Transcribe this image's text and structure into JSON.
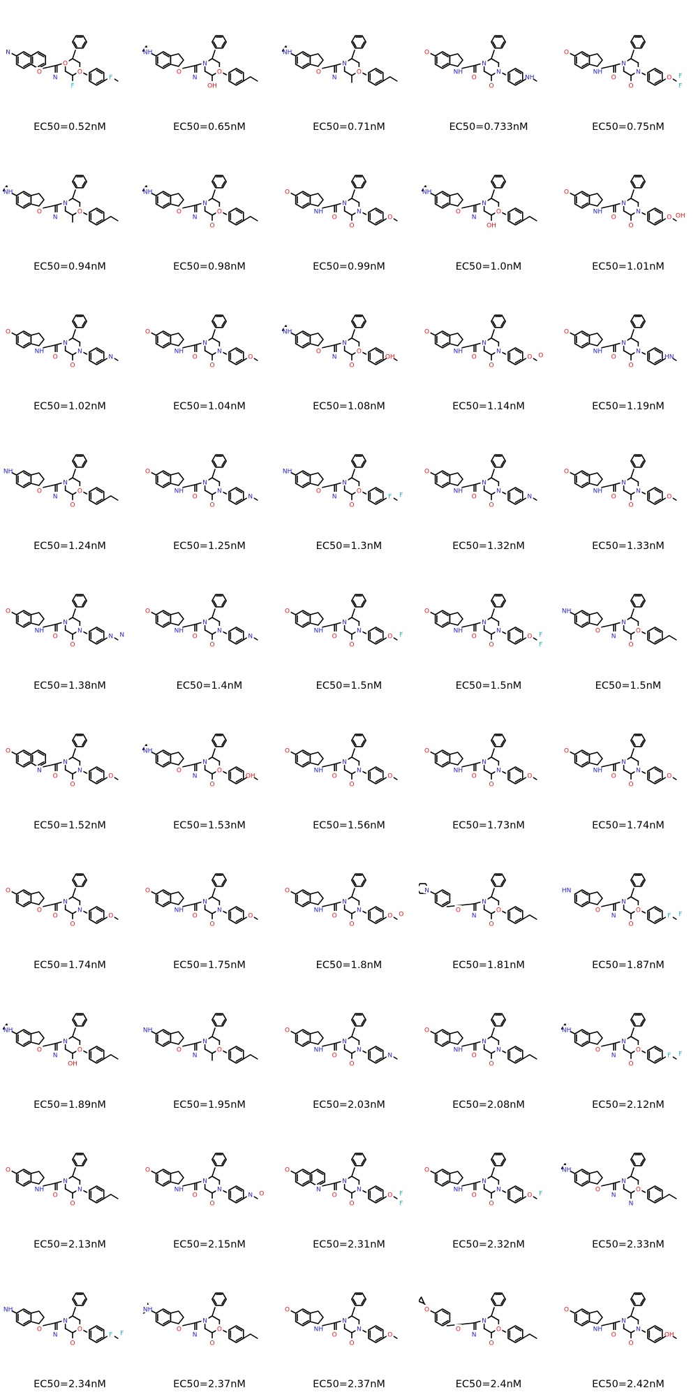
{
  "compounds": [
    {
      "label": "EC50=0.52nM",
      "core": "quinoline",
      "sub": "methyl",
      "r": "OCHF2",
      "atoms": [
        "N",
        "O",
        "N",
        "O",
        "O",
        "F",
        "F"
      ]
    },
    {
      "label": "EC50=0.65nM",
      "core": "indole",
      "sub": "cyclopropyl",
      "r": "CH(CH3)OH",
      "atoms": [
        "NH",
        "O",
        "N",
        "N",
        "O",
        "OH"
      ]
    },
    {
      "label": "EC50=0.71nM",
      "core": "indole",
      "sub": "cyclopropyl",
      "r": "cyclopropyl",
      "atoms": [
        "NH",
        "O",
        "N",
        "N",
        "O"
      ]
    },
    {
      "label": "EC50=0.733nM",
      "core": "indole",
      "sub": "methoxy",
      "r": "indolyl",
      "atoms": [
        "O",
        "NH",
        "O",
        "N",
        "N",
        "O",
        "NH"
      ]
    },
    {
      "label": "EC50=0.75nM",
      "core": "indole",
      "sub": "methoxy",
      "r": "OCHF2",
      "atoms": [
        "O",
        "NH",
        "O",
        "N",
        "N",
        "O",
        "O",
        "F",
        "F"
      ]
    },
    {
      "label": "EC50=0.94nM",
      "core": "indole",
      "sub": "cyclopropyl",
      "r": "methyl",
      "atoms": [
        "NH",
        "O",
        "N",
        "N",
        "O"
      ]
    },
    {
      "label": "EC50=0.98nM",
      "core": "indole",
      "sub": "cyclopropyl",
      "r": "ortho-methoxy",
      "atoms": [
        "NH",
        "O",
        "N",
        "N",
        "O",
        "O"
      ]
    },
    {
      "label": "EC50=0.99nM",
      "core": "indole",
      "sub": "methoxy",
      "r": "dihydrobenzofuran",
      "atoms": [
        "O",
        "NH",
        "O",
        "N",
        "N",
        "O",
        "O"
      ]
    },
    {
      "label": "EC50=1.0nM",
      "core": "indole",
      "sub": "cyclopropyl",
      "r": "CH2OH",
      "atoms": [
        "NH",
        "O",
        "N",
        "N",
        "O",
        "OH"
      ]
    },
    {
      "label": "EC50=1.01nM",
      "core": "indole",
      "sub": "methoxy",
      "r": "OCH2CH2OH",
      "atoms": [
        "O",
        "NH",
        "O",
        "N",
        "N",
        "O",
        "O",
        "OH"
      ]
    },
    {
      "label": "EC50=1.02nM",
      "core": "indole",
      "sub": "methoxy",
      "r": "benzyl",
      "atoms": [
        "O",
        "NH",
        "O",
        "N",
        "N",
        "O",
        "N"
      ]
    },
    {
      "label": "EC50=1.04nM",
      "core": "indole",
      "sub": "methoxy",
      "r": "methoxy",
      "atoms": [
        "O",
        "NH",
        "O",
        "N",
        "N",
        "O",
        "O"
      ]
    },
    {
      "label": "EC50=1.08nM",
      "core": "indole",
      "sub": "cyclopropyl",
      "r": "OCH2CH2OH",
      "atoms": [
        "NH",
        "O",
        "N",
        "N",
        "O",
        "O",
        "OH"
      ]
    },
    {
      "label": "EC50=1.14nM",
      "core": "indole",
      "sub": "methoxy",
      "r": "methoxy",
      "atoms": [
        "O",
        "NH",
        "O",
        "N",
        "N",
        "O",
        "O",
        "O"
      ]
    },
    {
      "label": "EC50=1.19nM",
      "core": "indole",
      "sub": "methoxy",
      "r": "pyrrolyl",
      "atoms": [
        "O",
        "NH",
        "O",
        "N",
        "N",
        "O",
        "HN"
      ]
    },
    {
      "label": "EC50=1.24nM",
      "core": "indole",
      "sub": "methyl",
      "r": "methoxy",
      "atoms": [
        "NH",
        "O",
        "N",
        "N",
        "O",
        "O"
      ]
    },
    {
      "label": "EC50=1.25nM",
      "core": "indole",
      "sub": "methoxy",
      "r": "phenyl",
      "atoms": [
        "O",
        "NH",
        "O",
        "N",
        "N",
        "O",
        "N"
      ]
    },
    {
      "label": "EC50=1.3nM",
      "core": "indole",
      "sub": "methyl",
      "r": "OCHF2",
      "atoms": [
        "NH",
        "O",
        "N",
        "N",
        "O",
        "O",
        "F",
        "F"
      ]
    },
    {
      "label": "EC50=1.32nM",
      "core": "indole",
      "sub": "methoxy",
      "r": "N-methylindolyl",
      "atoms": [
        "O",
        "NH",
        "O",
        "N",
        "N",
        "O",
        "N"
      ]
    },
    {
      "label": "EC50=1.33nM",
      "core": "indole",
      "sub": "methoxy",
      "r": "ethoxy",
      "atoms": [
        "O",
        "NH",
        "O",
        "N",
        "N",
        "O",
        "O"
      ]
    },
    {
      "label": "EC50=1.38nM",
      "core": "indole",
      "sub": "methoxy",
      "r": "pyrazolyl",
      "atoms": [
        "O",
        "NH",
        "O",
        "N",
        "N",
        "O",
        "N",
        "N"
      ]
    },
    {
      "label": "EC50=1.4nM",
      "core": "indole",
      "sub": "methoxy",
      "r": "phenyl",
      "atoms": [
        "O",
        "NH",
        "O",
        "N",
        "N",
        "O",
        "N"
      ]
    },
    {
      "label": "EC50=1.5nM",
      "core": "indole",
      "sub": "methoxy",
      "r": "phenyl",
      "atoms": [
        "O",
        "NH",
        "O",
        "N",
        "N",
        "O",
        "O",
        "F"
      ]
    },
    {
      "label": "EC50=1.5nM",
      "core": "indole",
      "sub": "methoxy",
      "r": "ortho-OCHF2",
      "atoms": [
        "O",
        "NH",
        "O",
        "N",
        "N",
        "O",
        "O",
        "F",
        "F"
      ]
    },
    {
      "label": "EC50=1.5nM",
      "core": "indole",
      "sub": "methyl",
      "r": "methoxy",
      "atoms": [
        "NH",
        "O",
        "N",
        "N",
        "O",
        "O"
      ]
    },
    {
      "label": "EC50=1.52nM",
      "core": "quinoline",
      "sub": "methoxy",
      "r": "methoxy",
      "atoms": [
        "O",
        "N",
        "O",
        "N",
        "N",
        "O",
        "O"
      ]
    },
    {
      "label": "EC50=1.53nM",
      "core": "indole",
      "sub": "cyclopropyl",
      "r": "hydroxyoxetanyl",
      "atoms": [
        "NH",
        "O",
        "N",
        "N",
        "O",
        "O",
        "OH"
      ]
    },
    {
      "label": "EC50=1.56nM",
      "core": "indole",
      "sub": "methoxy",
      "r": "ortho-methoxy",
      "atoms": [
        "O",
        "NH",
        "O",
        "N",
        "N",
        "O",
        "O"
      ]
    },
    {
      "label": "EC50=1.73nM",
      "core": "indole",
      "sub": "methoxy",
      "r": "cyclopropylmethoxy",
      "atoms": [
        "O",
        "NH",
        "O",
        "N",
        "N",
        "O",
        "O"
      ]
    },
    {
      "label": "EC50=1.74nM",
      "core": "indole",
      "sub": "methoxy",
      "r": "methoxy",
      "atoms": [
        "O",
        "NH",
        "O",
        "N",
        "N",
        "O",
        "O"
      ]
    },
    {
      "label": "EC50=1.74nM",
      "core": "benzofuran",
      "sub": "methoxy",
      "r": "methoxy",
      "atoms": [
        "O",
        "O",
        "O",
        "N",
        "N",
        "O",
        "O"
      ]
    },
    {
      "label": "EC50=1.75nM",
      "core": "indole",
      "sub": "methoxy",
      "r": "acetyl",
      "atoms": [
        "O",
        "NH",
        "O",
        "N",
        "N",
        "O",
        "O"
      ]
    },
    {
      "label": "EC50=1.8nM",
      "core": "indole",
      "sub": "methoxy",
      "r": "methyl-ester",
      "atoms": [
        "O",
        "NH",
        "O",
        "N",
        "N",
        "O",
        "O",
        "O"
      ]
    },
    {
      "label": "EC50=1.81nM",
      "core": "phenyl",
      "sub": "piperidinyl",
      "r": "methoxy",
      "atoms": [
        "N",
        "O",
        "N",
        "N",
        "O",
        "O"
      ]
    },
    {
      "label": "EC50=1.87nM",
      "core": "indole",
      "sub": "none",
      "r": "OCHF2",
      "atoms": [
        "HN",
        "O",
        "N",
        "N",
        "O",
        "O",
        "F",
        "F"
      ]
    },
    {
      "label": "EC50=1.89nM",
      "core": "indole",
      "sub": "cyclopropyl",
      "r": "CH2CH2OH",
      "atoms": [
        "NH",
        "O",
        "N",
        "N",
        "O",
        "OH"
      ]
    },
    {
      "label": "EC50=1.95nM",
      "core": "indole",
      "sub": "methyl",
      "r": "phenyl",
      "atoms": [
        "NH",
        "O",
        "N",
        "N",
        "O"
      ]
    },
    {
      "label": "EC50=2.03nM",
      "core": "indole",
      "sub": "methoxy",
      "r": "N-cyclopropylindolyl",
      "atoms": [
        "O",
        "NH",
        "O",
        "N",
        "N",
        "O",
        "N"
      ]
    },
    {
      "label": "EC50=2.08nM",
      "core": "indole",
      "sub": "methoxy",
      "r": "methyl",
      "atoms": [
        "O",
        "NH",
        "O",
        "N",
        "N",
        "O"
      ]
    },
    {
      "label": "EC50=2.12nM",
      "core": "indole",
      "sub": "cyclopropyl",
      "r": "OCHF2",
      "atoms": [
        "NH",
        "O",
        "N",
        "N",
        "O",
        "O",
        "F",
        "F"
      ]
    },
    {
      "label": "EC50=2.13nM",
      "core": "indole",
      "sub": "methoxy",
      "r": "phenyl",
      "atoms": [
        "O",
        "NH",
        "O",
        "N",
        "N",
        "O"
      ]
    },
    {
      "label": "EC50=2.15nM",
      "core": "indole",
      "sub": "methoxy",
      "r": "methoxy",
      "atoms": [
        "O",
        "NH",
        "O",
        "N",
        "N",
        "O",
        "N",
        "O"
      ]
    },
    {
      "label": "EC50=2.31nM",
      "core": "quinoline",
      "sub": "methoxy",
      "r": "OCHF2",
      "atoms": [
        "O",
        "N",
        "O",
        "N",
        "N",
        "O",
        "O",
        "F",
        "F"
      ]
    },
    {
      "label": "EC50=2.32nM",
      "core": "indole",
      "sub": "methoxy",
      "r": "fluorooxetanyl",
      "atoms": [
        "O",
        "NH",
        "O",
        "N",
        "N",
        "O",
        "O",
        "F"
      ]
    },
    {
      "label": "EC50=2.33nM",
      "core": "indole",
      "sub": "cyclopropyl",
      "r": "phenyl",
      "atoms": [
        "NH",
        "O",
        "N",
        "N",
        "O",
        "N"
      ]
    },
    {
      "label": "EC50=2.34nM",
      "core": "indole",
      "sub": "methyl",
      "r": "OCHF2",
      "atoms": [
        "NH",
        "O",
        "N",
        "N",
        "O",
        "O",
        "F",
        "F"
      ]
    },
    {
      "label": "EC50=2.37nM",
      "core": "indole",
      "sub": "isopropyl",
      "r": "methoxy",
      "atoms": [
        "NH",
        "O",
        "N",
        "N",
        "O",
        "O"
      ]
    },
    {
      "label": "EC50=2.37nM",
      "core": "indole",
      "sub": "methoxy",
      "r": "isopropoxy",
      "atoms": [
        "O",
        "NH",
        "O",
        "N",
        "N",
        "O",
        "O"
      ]
    },
    {
      "label": "EC50=2.4nM",
      "core": "phenyl",
      "sub": "cyclopropylmethoxy",
      "r": "methoxy",
      "atoms": [
        "O",
        "O",
        "N",
        "N",
        "O",
        "O"
      ]
    },
    {
      "label": "EC50=2.42nM",
      "core": "indole",
      "sub": "methoxy",
      "r": "ortho-OH",
      "atoms": [
        "O",
        "NH",
        "O",
        "N",
        "N",
        "O",
        "OH"
      ]
    }
  ],
  "colors": {
    "bond": "#000000",
    "N": "#2222dd",
    "O": "#ee1111",
    "F": "#22bbcc",
    "label": "#000000"
  }
}
